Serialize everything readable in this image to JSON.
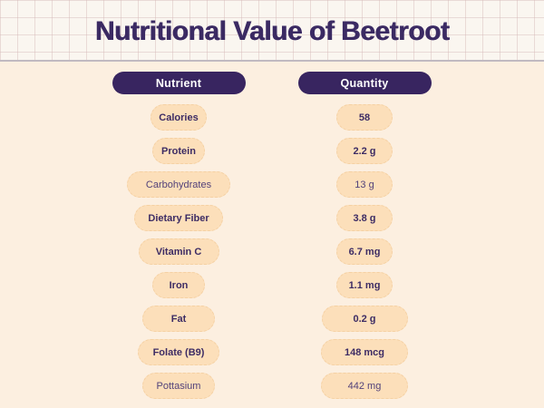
{
  "page_title": "Nutritional Value of Beetroot",
  "chart_data": {
    "type": "table",
    "title": "Nutritional Value of Beetroot",
    "columns": [
      "Nutrient",
      "Quantity"
    ],
    "rows": [
      [
        "Calories",
        "58"
      ],
      [
        "Protein",
        "2.2 g"
      ],
      [
        "Carbohydrates",
        "13 g"
      ],
      [
        "Dietary Fiber",
        "3.8 g"
      ],
      [
        "Vitamin C",
        "6.7 mg"
      ],
      [
        "Iron",
        "1.1 mg"
      ],
      [
        "Fat",
        "0.2 g"
      ],
      [
        "Folate (B9)",
        "148 mcg"
      ],
      [
        "Pottasium",
        "442 mg"
      ]
    ]
  },
  "colors": {
    "title": "#3b2a63",
    "banner_bg": "#faf6f0",
    "body_bg": "#fcefe0",
    "header_pill_bg": "#382560",
    "header_pill_text": "#ffffff",
    "data_pill_bg": "#fcdfba",
    "data_text": "#3d2c64"
  }
}
